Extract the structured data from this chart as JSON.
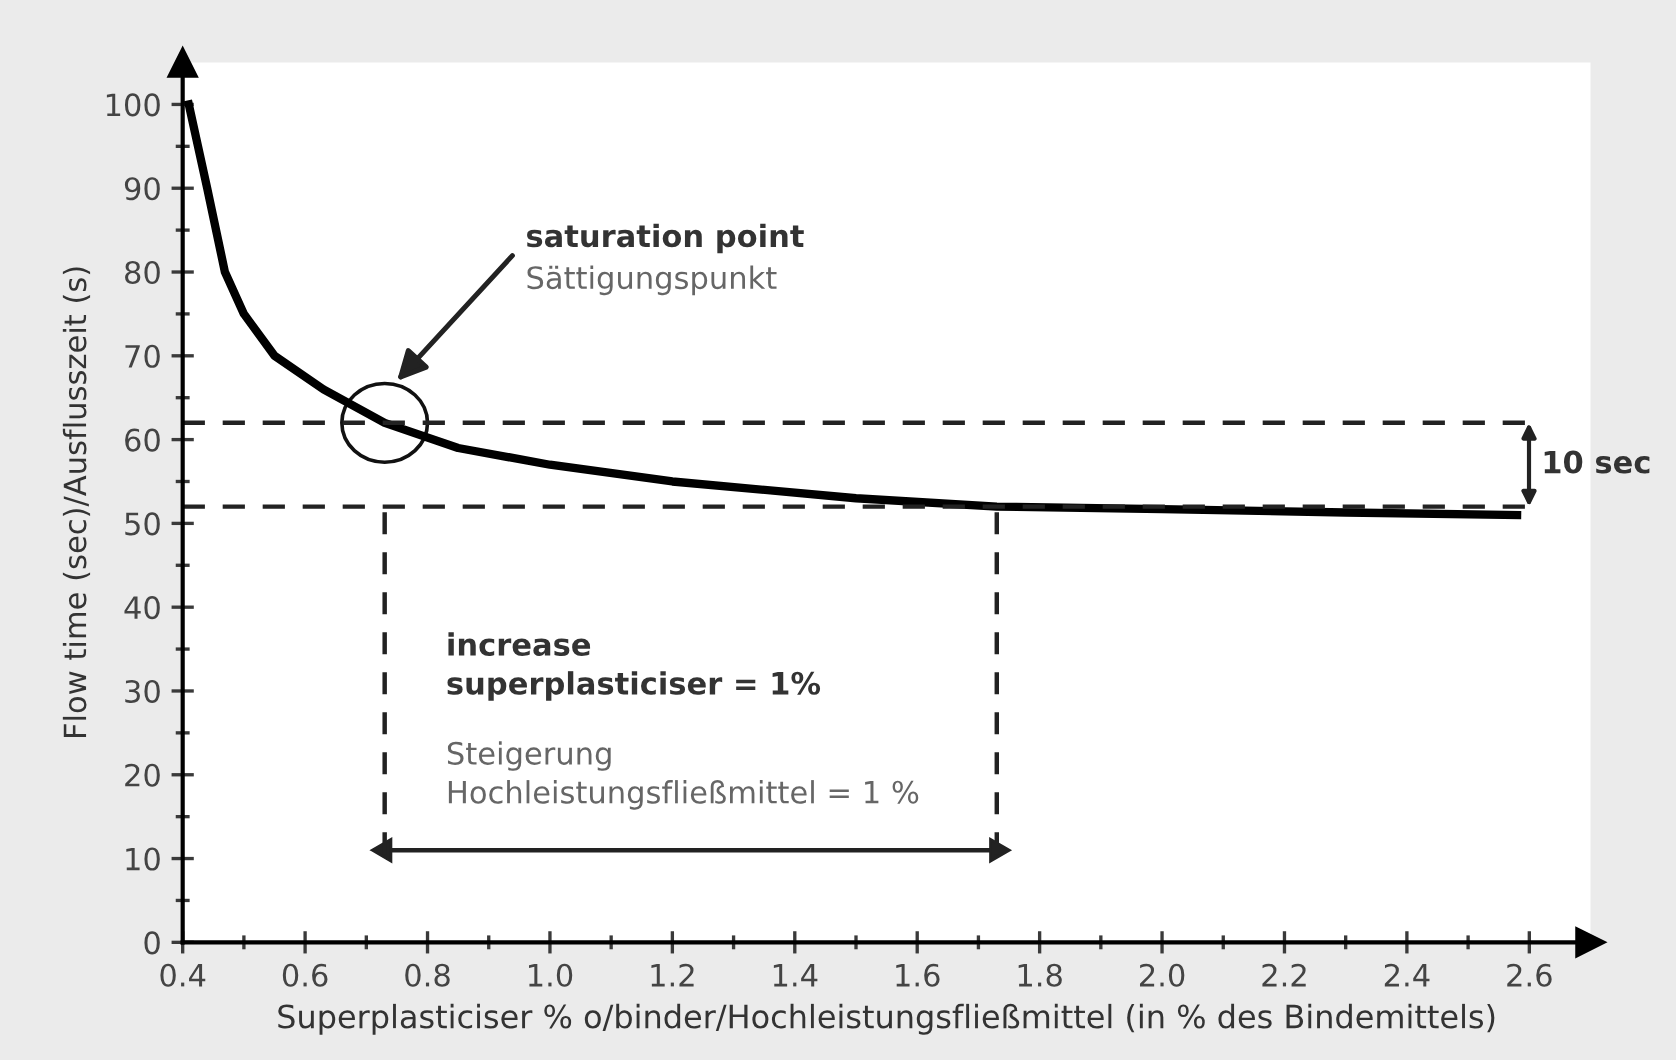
{
  "chart_data": {
    "type": "line",
    "xlabel": "Superplasticiser % o/binder/Hochleistungsfließmittel (in % des Bindemittels)",
    "ylabel": "Flow time (sec)/Ausflusszeit (s)",
    "series": [
      {
        "color": "#000000",
        "x": [
          0.41,
          0.44,
          0.469,
          0.5,
          0.55,
          0.63,
          0.73,
          0.85,
          1.0,
          1.2,
          1.5,
          1.73,
          2.0,
          2.3,
          2.58
        ],
        "values": [
          100,
          90,
          80,
          75,
          70,
          66,
          62,
          59,
          57,
          55,
          53,
          52,
          51.7,
          51.3,
          51
        ]
      },
      {
        "type": "line",
        "color": "#222222",
        "marker": "triangle",
        "x": [
          0.73,
          1.73
        ],
        "values": [
          11,
          11
        ]
      }
    ],
    "xlim": [
      0.4,
      2.7
    ],
    "ylim": [
      0,
      105
    ],
    "xticks": [
      0.4,
      0.6,
      0.8,
      {
        "value": 1.0,
        "label": "1.0"
      },
      1.2,
      1.4,
      1.6,
      1.8,
      {
        "value": 2.0,
        "label": "2.0"
      },
      2.2,
      2.4,
      2.6
    ],
    "yticks": [
      0,
      10,
      20,
      30,
      40,
      50,
      60,
      70,
      80,
      90,
      100
    ],
    "ref_lines": [
      {
        "axis": "y",
        "value": 62,
        "color": "#222222",
        "line_style": "dashed"
      },
      {
        "axis": "y",
        "value": 52,
        "color": "#222222",
        "line_style": "dashed"
      },
      {
        "axis": "x",
        "value": 0.73,
        "color": "#222222",
        "line_style": "dashed"
      },
      {
        "axis": "x",
        "value": 1.73,
        "color": "#222222",
        "line_style": "dashed"
      }
    ],
    "annotations": [
      {
        "text": "saturation point",
        "x": 0.75,
        "y": 67
      },
      "Sättigungspunkt",
      "10 sec",
      "increase\nsuperplasticiser = 1%",
      "Steigerung\nHochleistungsfließmittel = 1 %"
    ],
    "grid": false,
    "legend": false,
    "marker": "none",
    "line_style": "solid"
  }
}
